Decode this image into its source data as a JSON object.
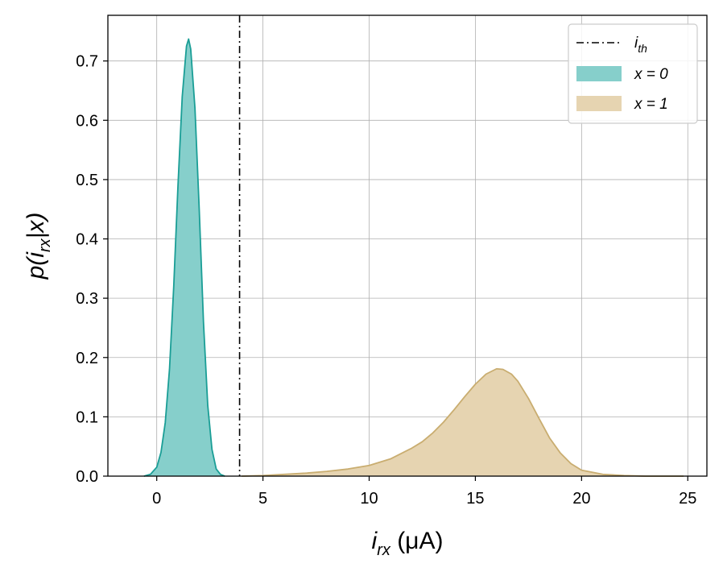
{
  "chart_data": {
    "type": "area",
    "title": "",
    "xlabel": {
      "base": "i",
      "sub": "rx",
      "suffix": " (μA)"
    },
    "ylabel": {
      "prefix": "p(",
      "base": "i",
      "sub": "rx",
      "suffix": "|x)"
    },
    "xlim": [
      -2.3,
      25.9
    ],
    "ylim": [
      0,
      0.777
    ],
    "xticks": [
      0,
      5,
      10,
      15,
      20,
      25
    ],
    "yticks": [
      0.0,
      0.1,
      0.2,
      0.3,
      0.4,
      0.5,
      0.6,
      0.7
    ],
    "ytick_labels": [
      "0.0",
      "0.1",
      "0.2",
      "0.3",
      "0.4",
      "0.5",
      "0.6",
      "0.7"
    ],
    "grid": true,
    "legend_position": "top-right",
    "threshold": {
      "name": "i_th",
      "label_base": "i",
      "label_sub": "th",
      "x": 3.9,
      "color": "#000000",
      "style": "dash-dot"
    },
    "series": [
      {
        "name": "x = 0",
        "legend_label": "x = 0",
        "fill_color": "#86cfcb",
        "line_color": "#1a9e96",
        "x": [
          -0.6,
          -0.3,
          0.0,
          0.2,
          0.4,
          0.6,
          0.8,
          1.0,
          1.2,
          1.4,
          1.5,
          1.6,
          1.8,
          2.0,
          2.2,
          2.4,
          2.6,
          2.8,
          3.0,
          3.2
        ],
        "y": [
          0.0,
          0.003,
          0.015,
          0.04,
          0.09,
          0.18,
          0.32,
          0.49,
          0.64,
          0.725,
          0.737,
          0.72,
          0.62,
          0.45,
          0.26,
          0.12,
          0.045,
          0.012,
          0.003,
          0.0
        ]
      },
      {
        "name": "x = 1",
        "legend_label": "x = 1",
        "fill_color": "#e6d4b1",
        "line_color": "#c9ad70",
        "x": [
          4.0,
          5.0,
          6.0,
          7.0,
          8.0,
          9.0,
          10.0,
          11.0,
          12.0,
          12.5,
          13.0,
          13.5,
          14.0,
          14.5,
          15.0,
          15.5,
          16.0,
          16.3,
          16.7,
          17.0,
          17.5,
          18.0,
          18.5,
          19.0,
          19.5,
          20.0,
          21.0,
          22.0,
          23.0,
          24.0,
          24.8
        ],
        "y": [
          0.0,
          0.001,
          0.003,
          0.005,
          0.008,
          0.012,
          0.018,
          0.029,
          0.047,
          0.058,
          0.073,
          0.091,
          0.112,
          0.134,
          0.155,
          0.172,
          0.181,
          0.18,
          0.172,
          0.16,
          0.131,
          0.097,
          0.064,
          0.039,
          0.021,
          0.01,
          0.003,
          0.001,
          0.0,
          0.0,
          0.0
        ]
      }
    ]
  }
}
